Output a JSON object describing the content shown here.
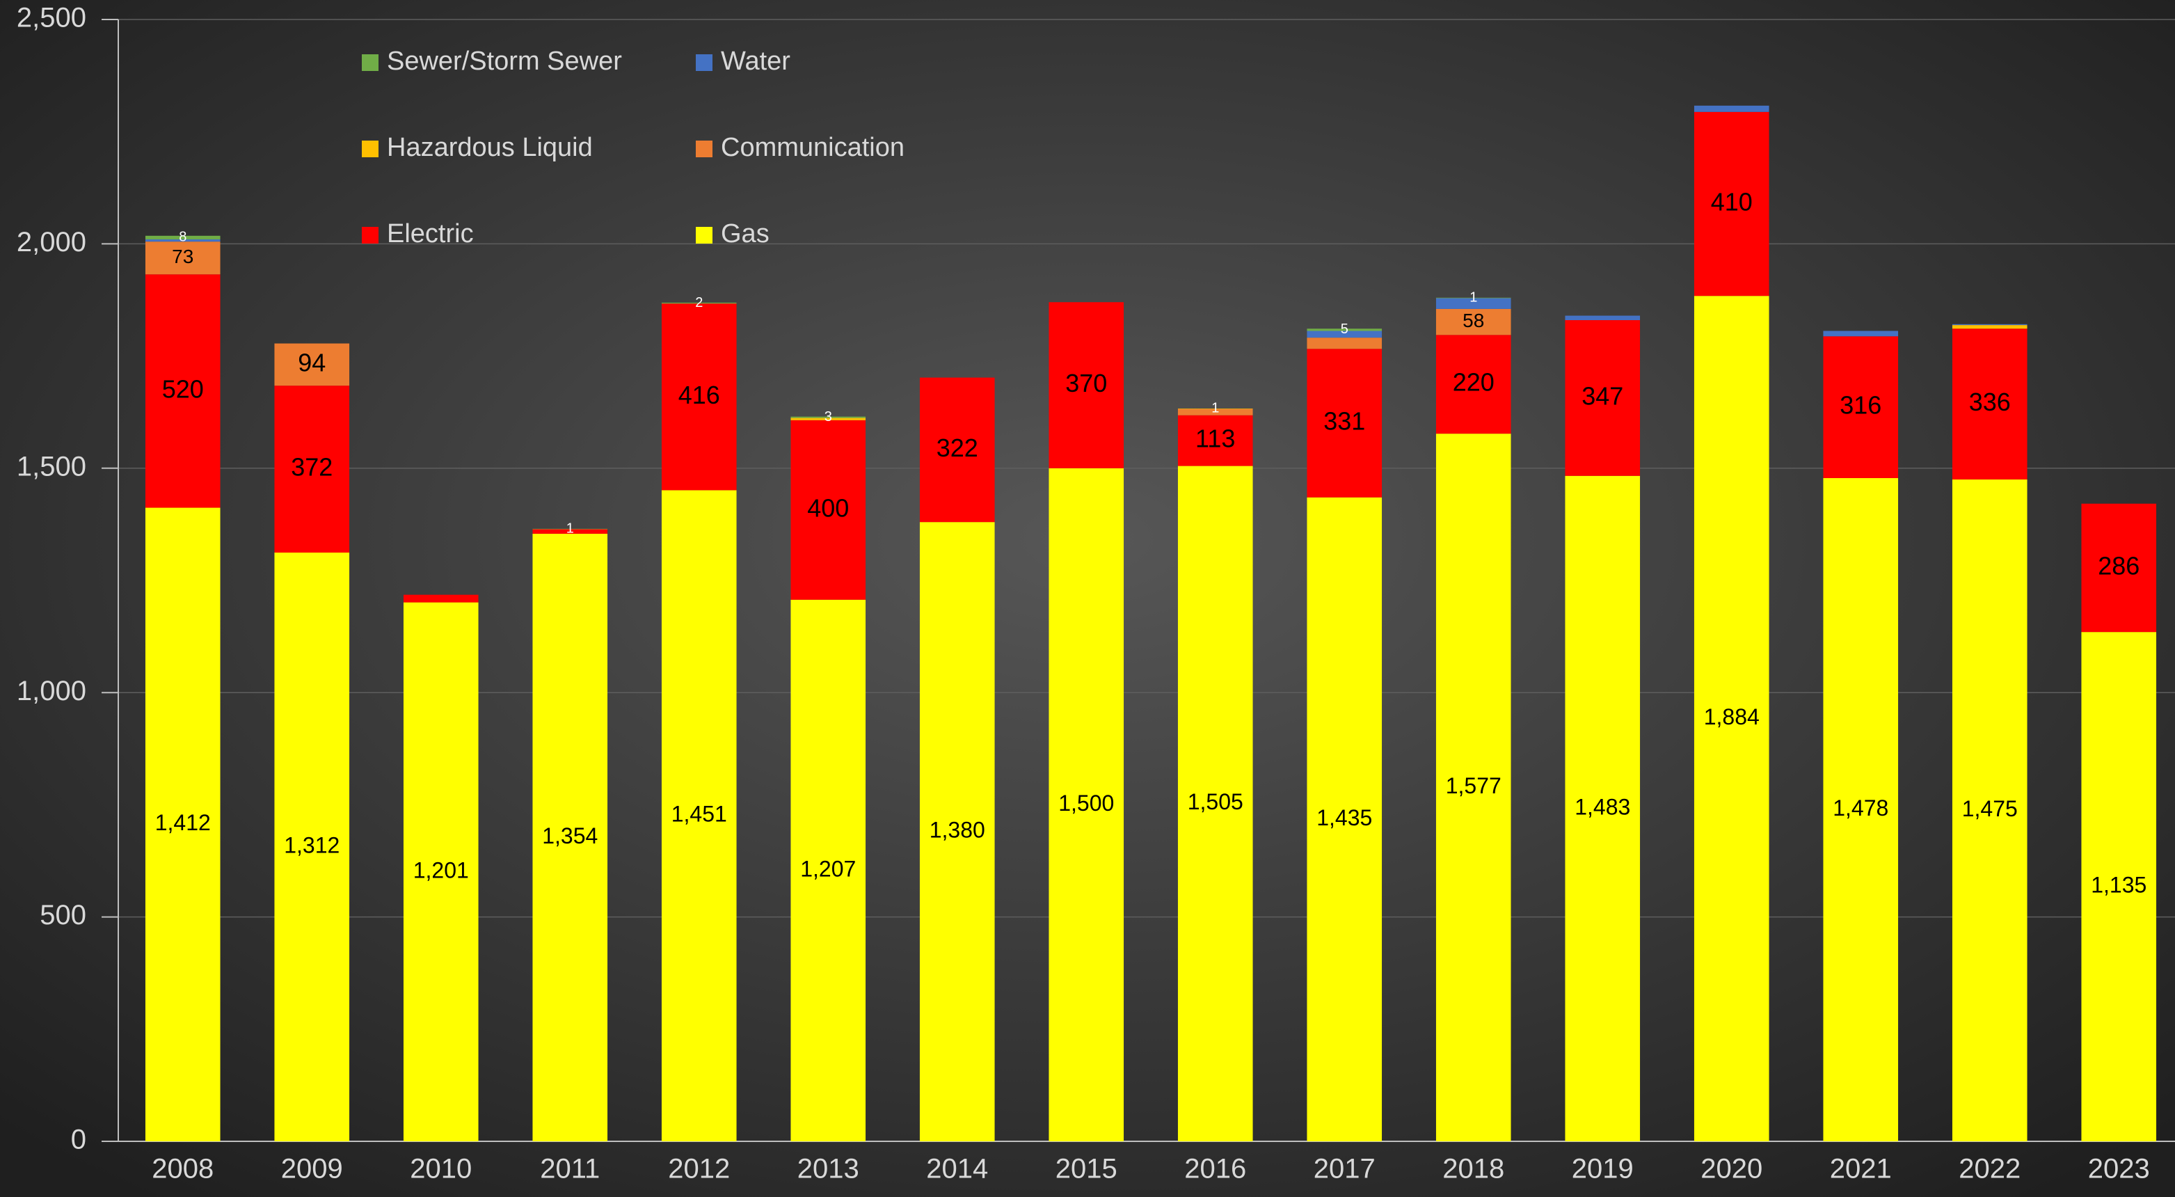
{
  "chart_data": {
    "type": "stacked_bar",
    "categories": [
      "2008",
      "2009",
      "2010",
      "2011",
      "2012",
      "2013",
      "2014",
      "2015",
      "2016",
      "2017",
      "2018",
      "2019",
      "2020",
      "2021",
      "2022",
      "2023"
    ],
    "series": [
      {
        "name": "Gas",
        "color": "#ffff00",
        "values": [
          1412,
          1312,
          1201,
          1354,
          1451,
          1207,
          1380,
          1500,
          1505,
          1435,
          1577,
          1483,
          1884,
          1478,
          1475,
          1135
        ],
        "value_labels": [
          "1,412",
          "1,312",
          "1,201",
          "1,354",
          "1,451",
          "1,207",
          "1,380",
          "1,500",
          "1,505",
          "1,435",
          "1,577",
          "1,483",
          "1,884",
          "1,478",
          "1,475",
          "1,135"
        ]
      },
      {
        "name": "Electric",
        "color": "#ff0000",
        "values": [
          520,
          372,
          17,
          10,
          416,
          400,
          322,
          370,
          113,
          331,
          220,
          347,
          410,
          316,
          336,
          286
        ],
        "value_labels": [
          "520",
          "372",
          null,
          null,
          "416",
          "400",
          "322",
          "370",
          "113",
          "331",
          "220",
          "347",
          "410",
          "316",
          "336",
          "286"
        ]
      },
      {
        "name": "Communication",
        "color": "#ed7d31",
        "values": [
          73,
          94,
          0,
          0,
          0,
          0,
          0,
          0,
          14,
          25,
          58,
          0,
          0,
          0,
          0,
          0
        ],
        "value_labels": [
          "73",
          "94",
          null,
          null,
          null,
          null,
          null,
          null,
          null,
          null,
          "58",
          null,
          null,
          null,
          null,
          null
        ]
      },
      {
        "name": "Hazardous Liquid",
        "color": "#ffc000",
        "values": [
          0,
          0,
          0,
          0,
          0,
          5,
          0,
          0,
          1,
          0,
          0,
          0,
          0,
          0,
          8,
          0
        ],
        "value_labels": [
          null,
          null,
          null,
          null,
          null,
          null,
          null,
          null,
          "1",
          null,
          null,
          null,
          null,
          null,
          null,
          null
        ]
      },
      {
        "name": "Water",
        "color": "#4472c4",
        "values": [
          5,
          0,
          0,
          0,
          0,
          0,
          0,
          0,
          0,
          15,
          24,
          10,
          14,
          12,
          2,
          0
        ],
        "value_labels": [
          null,
          null,
          null,
          null,
          null,
          null,
          null,
          null,
          null,
          null,
          null,
          null,
          null,
          null,
          null,
          null
        ]
      },
      {
        "name": "Sewer/Storm Sewer",
        "color": "#70ad47",
        "values": [
          8,
          0,
          0,
          1,
          2,
          3,
          0,
          0,
          0,
          5,
          1,
          0,
          0,
          0,
          0,
          0
        ],
        "value_labels": [
          "8",
          null,
          null,
          "1",
          "2",
          "3",
          null,
          null,
          null,
          "5",
          "1",
          null,
          null,
          null,
          null,
          null
        ]
      }
    ],
    "ylim": [
      0,
      2500
    ],
    "yticks": [
      0,
      500,
      {
        "value": 1000,
        "label": "1,000"
      },
      {
        "value": 1500,
        "label": "1,500"
      },
      {
        "value": 2000,
        "label": "2,000"
      },
      {
        "value": 2500,
        "label": "2,500"
      }
    ],
    "grid": true
  }
}
